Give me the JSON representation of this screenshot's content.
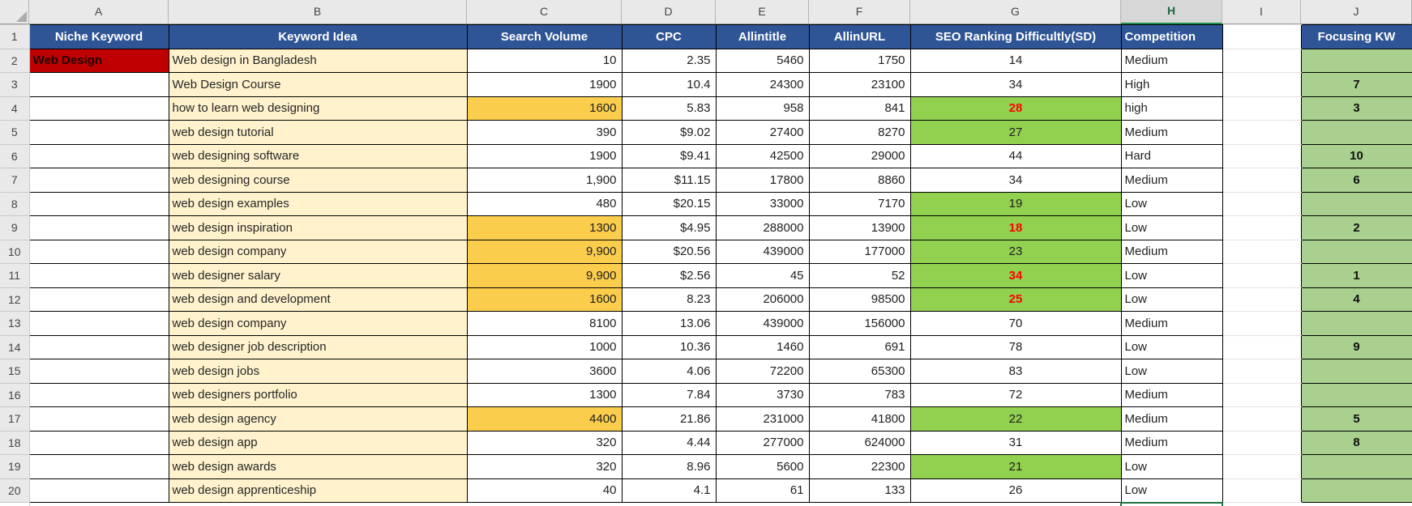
{
  "columns": [
    "A",
    "B",
    "C",
    "D",
    "E",
    "F",
    "G",
    "H",
    "I",
    "J"
  ],
  "headers": {
    "a": "Niche Keyword",
    "b": "Keyword Idea",
    "c": "Search Volume",
    "d": "CPC",
    "e": "Allintitle",
    "f": "AllinURL",
    "g": "SEO Ranking Difficultly(SD)",
    "h": "Competition",
    "i": "",
    "j": "Focusing KW"
  },
  "header_row_number": "1",
  "selection": {
    "selected_column": "H",
    "active_cell": "H21"
  },
  "colors": {
    "header_bg": "#2F5597",
    "header_text": "#FFFFFF",
    "niche_fill": "#C00000",
    "keyword_fill": "#FFF2CC",
    "gold_fill": "#FACD4D",
    "sd_green_fill": "#92D050",
    "focus_green_fill": "#A9D08E",
    "alert_text": "#FF0000",
    "selection_green": "#1E7145"
  },
  "rows": [
    {
      "num": "2",
      "a": "Web Design",
      "b": "Web design in Bangladesh",
      "c": "10",
      "c_gold": false,
      "d": "2.35",
      "e": "5460",
      "f": "1750",
      "g": "14",
      "g_green": false,
      "g_red": false,
      "h": "Medium",
      "j": ""
    },
    {
      "num": "3",
      "a": "",
      "b": "Web Design Course",
      "c": "1900",
      "c_gold": false,
      "d": "10.4",
      "e": "24300",
      "f": "23100",
      "g": "34",
      "g_green": false,
      "g_red": false,
      "h": "High",
      "j": "7"
    },
    {
      "num": "4",
      "a": "",
      "b": "how to learn web designing",
      "c": "1600",
      "c_gold": true,
      "d": "5.83",
      "e": "958",
      "f": "841",
      "g": "28",
      "g_green": true,
      "g_red": true,
      "h": "high",
      "j": "3"
    },
    {
      "num": "5",
      "a": "",
      "b": "web design tutorial",
      "c": "390",
      "c_gold": false,
      "d": "$9.02",
      "e": "27400",
      "f": "8270",
      "g": "27",
      "g_green": true,
      "g_red": false,
      "h": "Medium",
      "j": ""
    },
    {
      "num": "6",
      "a": "",
      "b": "web designing software",
      "c": "1900",
      "c_gold": false,
      "d": "$9.41",
      "e": "42500",
      "f": "29000",
      "g": "44",
      "g_green": false,
      "g_red": false,
      "h": "Hard",
      "j": "10"
    },
    {
      "num": "7",
      "a": "",
      "b": "web designing course",
      "c": "1,900",
      "c_gold": false,
      "d": "$11.15",
      "e": "17800",
      "f": "8860",
      "g": "34",
      "g_green": false,
      "g_red": false,
      "h": "Medium",
      "j": "6"
    },
    {
      "num": "8",
      "a": "",
      "b": "web design examples",
      "c": "480",
      "c_gold": false,
      "d": "$20.15",
      "e": "33000",
      "f": "7170",
      "g": "19",
      "g_green": true,
      "g_red": false,
      "h": "Low",
      "j": ""
    },
    {
      "num": "9",
      "a": "",
      "b": "web design inspiration",
      "c": "1300",
      "c_gold": true,
      "d": "$4.95",
      "e": "288000",
      "f": "13900",
      "g": "18",
      "g_green": true,
      "g_red": true,
      "h": "Low",
      "j": "2"
    },
    {
      "num": "10",
      "a": "",
      "b": "web design company",
      "c": "9,900",
      "c_gold": true,
      "d": "$20.56",
      "e": "439000",
      "f": "177000",
      "g": "23",
      "g_green": true,
      "g_red": false,
      "h": "Medium",
      "j": ""
    },
    {
      "num": "11",
      "a": "",
      "b": "web designer salary",
      "c": "9,900",
      "c_gold": true,
      "d": "$2.56",
      "e": "45",
      "f": "52",
      "g": "34",
      "g_green": true,
      "g_red": true,
      "h": "Low",
      "j": "1"
    },
    {
      "num": "12",
      "a": "",
      "b": "web design and development",
      "c": "1600",
      "c_gold": true,
      "d": "8.23",
      "e": "206000",
      "f": "98500",
      "g": "25",
      "g_green": true,
      "g_red": true,
      "h": "Low",
      "j": "4"
    },
    {
      "num": "13",
      "a": "",
      "b": "web design company",
      "c": "8100",
      "c_gold": false,
      "d": "13.06",
      "e": "439000",
      "f": "156000",
      "g": "70",
      "g_green": false,
      "g_red": false,
      "h": "Medium",
      "j": ""
    },
    {
      "num": "14",
      "a": "",
      "b": "web designer job description",
      "c": "1000",
      "c_gold": false,
      "d": "10.36",
      "e": "1460",
      "f": "691",
      "g": "78",
      "g_green": false,
      "g_red": false,
      "h": "Low",
      "j": "9"
    },
    {
      "num": "15",
      "a": "",
      "b": "web design jobs",
      "c": "3600",
      "c_gold": false,
      "d": "4.06",
      "e": "72200",
      "f": "65300",
      "g": "83",
      "g_green": false,
      "g_red": false,
      "h": "Low",
      "j": ""
    },
    {
      "num": "16",
      "a": "",
      "b": "web designers portfolio",
      "c": "1300",
      "c_gold": false,
      "d": "7.84",
      "e": "3730",
      "f": "783",
      "g": "72",
      "g_green": false,
      "g_red": false,
      "h": "Medium",
      "j": ""
    },
    {
      "num": "17",
      "a": "",
      "b": "web design agency",
      "c": "4400",
      "c_gold": true,
      "d": "21.86",
      "e": "231000",
      "f": "41800",
      "g": "22",
      "g_green": true,
      "g_red": false,
      "h": "Medium",
      "j": "5"
    },
    {
      "num": "18",
      "a": "",
      "b": "web design app",
      "c": "320",
      "c_gold": false,
      "d": "4.44",
      "e": "277000",
      "f": "624000",
      "g": "31",
      "g_green": false,
      "g_red": false,
      "h": "Medium",
      "j": "8"
    },
    {
      "num": "19",
      "a": "",
      "b": "web design awards",
      "c": "320",
      "c_gold": false,
      "d": "8.96",
      "e": "5600",
      "f": "22300",
      "g": "21",
      "g_green": true,
      "g_red": false,
      "h": "Low",
      "j": ""
    },
    {
      "num": "20",
      "a": "",
      "b": "web design apprenticeship",
      "c": "40",
      "c_gold": false,
      "d": "4.1",
      "e": "61",
      "f": "133",
      "g": "26",
      "g_green": false,
      "g_red": false,
      "h": "Low",
      "j": ""
    }
  ]
}
